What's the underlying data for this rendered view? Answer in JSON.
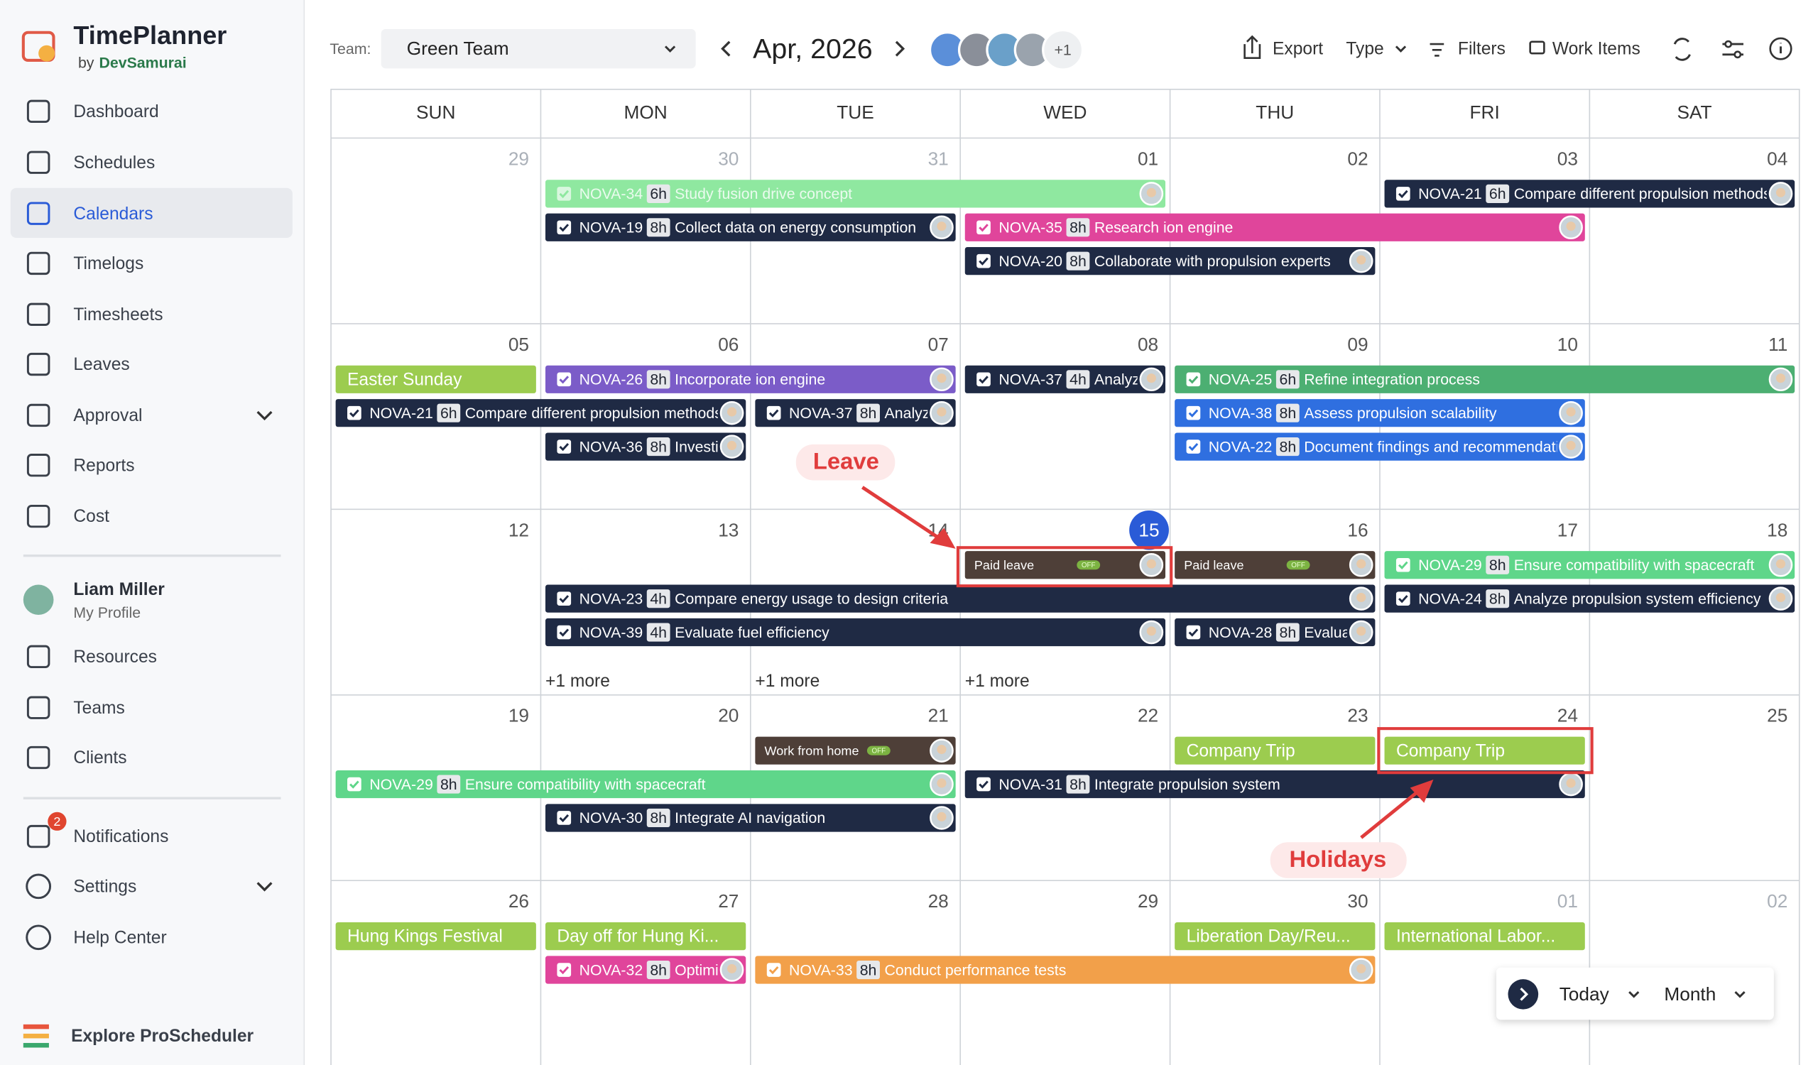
{
  "brand": {
    "name": "TimePlanner",
    "by": "by",
    "company": "DevSamurai"
  },
  "nav": {
    "main": [
      "Dashboard",
      "Schedules",
      "Calendars",
      "Timelogs",
      "Timesheets",
      "Leaves",
      "Approval",
      "Reports",
      "Cost"
    ],
    "profile": {
      "name": "Liam Miller",
      "link": "My Profile"
    },
    "people": [
      "Resources",
      "Teams",
      "Clients"
    ],
    "notifications": {
      "label": "Notifications",
      "badge": "2"
    },
    "more": [
      "Settings",
      "Help Center"
    ],
    "explore": "Explore ProScheduler"
  },
  "toolbar": {
    "team_label": "Team:",
    "team": "Green Team",
    "period": "Apr, 2026",
    "members_more": "+1",
    "actions": [
      "Export",
      "Type",
      "Filters",
      "Work Items"
    ]
  },
  "calendar": {
    "weekdays": [
      "SUN",
      "MON",
      "TUE",
      "WED",
      "THU",
      "FRI",
      "SAT"
    ],
    "weeks": [
      {
        "days": [
          "29",
          "30",
          "31",
          "01",
          "02",
          "03",
          "04"
        ],
        "events": [
          {
            "id": "NOVA-34",
            "hours": "6h",
            "title": "Study fusion drive concept"
          },
          {
            "id": "NOVA-21",
            "hours": "6h",
            "title": "Compare different propulsion methods"
          },
          {
            "id": "NOVA-19",
            "hours": "8h",
            "title": "Collect data on energy consumption"
          },
          {
            "id": "NOVA-35",
            "hours": "8h",
            "title": "Research ion engine"
          },
          {
            "id": "NOVA-20",
            "hours": "8h",
            "title": "Collaborate with propulsion experts"
          }
        ]
      },
      {
        "days": [
          "05",
          "06",
          "07",
          "08",
          "09",
          "10",
          "11"
        ],
        "events": [
          {
            "title": "Easter Sunday"
          },
          {
            "id": "NOVA-26",
            "hours": "8h",
            "title": "Incorporate ion engine"
          },
          {
            "id": "NOVA-37",
            "hours": "4h",
            "title": "Analyz"
          },
          {
            "id": "NOVA-25",
            "hours": "6h",
            "title": "Refine integration process"
          },
          {
            "id": "NOVA-21",
            "hours": "6h",
            "title": "Compare different propulsion methods"
          },
          {
            "id": "NOVA-37",
            "hours": "8h",
            "title": "Analyz"
          },
          {
            "id": "NOVA-38",
            "hours": "8h",
            "title": "Assess propulsion scalability"
          },
          {
            "id": "NOVA-36",
            "hours": "8h",
            "title": "Investi"
          },
          {
            "id": "NOVA-22",
            "hours": "8h",
            "title": "Document findings and recommendati"
          }
        ]
      },
      {
        "days": [
          "12",
          "13",
          "14",
          "15",
          "16",
          "17",
          "18"
        ],
        "events": [
          {
            "title": "Paid leave",
            "tag": "OFF"
          },
          {
            "title": "Paid leave",
            "tag": "OFF"
          },
          {
            "id": "NOVA-29",
            "hours": "8h",
            "title": "Ensure compatibility with spacecraft"
          },
          {
            "id": "NOVA-23",
            "hours": "4h",
            "title": "Compare energy usage to design criteria"
          },
          {
            "id": "NOVA-24",
            "hours": "8h",
            "title": "Analyze propulsion system efficiency"
          },
          {
            "id": "NOVA-39",
            "hours": "4h",
            "title": "Evaluate fuel efficiency"
          },
          {
            "id": "NOVA-28",
            "hours": "8h",
            "title": "Evalua"
          }
        ],
        "more": [
          "+1 more",
          "+1 more",
          "+1 more"
        ]
      },
      {
        "days": [
          "19",
          "20",
          "21",
          "22",
          "23",
          "24",
          "25"
        ],
        "events": [
          {
            "title": "Work from home",
            "tag": "OFF"
          },
          {
            "title": "Company Trip"
          },
          {
            "title": "Company Trip"
          },
          {
            "id": "NOVA-29",
            "hours": "8h",
            "title": "Ensure compatibility with spacecraft"
          },
          {
            "id": "NOVA-31",
            "hours": "8h",
            "title": "Integrate propulsion system"
          },
          {
            "id": "NOVA-30",
            "hours": "8h",
            "title": "Integrate AI navigation"
          }
        ]
      },
      {
        "days": [
          "26",
          "27",
          "28",
          "29",
          "30",
          "01",
          "02"
        ],
        "events": [
          {
            "title": "Hung Kings Festival"
          },
          {
            "title": "Day off for Hung Ki..."
          },
          {
            "title": "Liberation Day/Reu..."
          },
          {
            "title": "International Labor..."
          },
          {
            "id": "NOVA-32",
            "hours": "8h",
            "title": "Optimi"
          },
          {
            "id": "NOVA-33",
            "hours": "8h",
            "title": "Conduct performance tests"
          }
        ]
      }
    ]
  },
  "annotations": {
    "leave": "Leave",
    "holidays": "Holidays"
  },
  "view_switcher": {
    "today": "Today",
    "mode": "Month"
  }
}
